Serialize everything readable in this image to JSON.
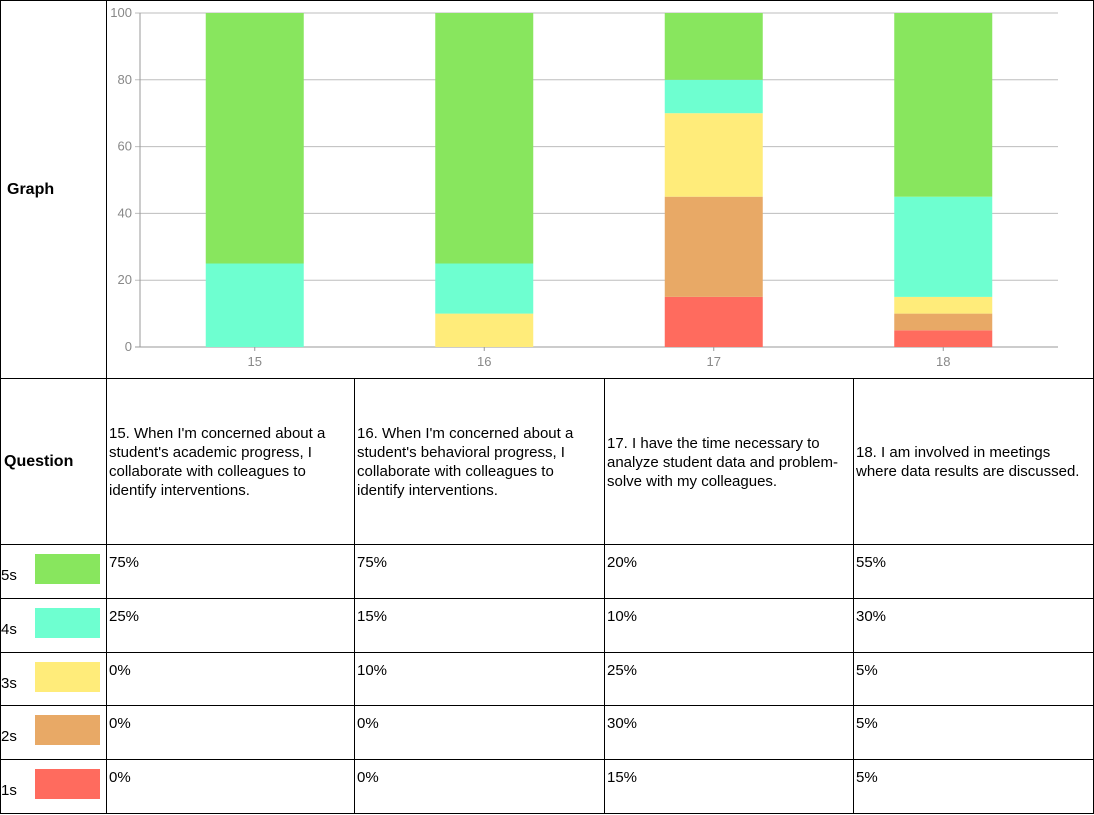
{
  "row_labels": {
    "graph": "Graph",
    "question": "Question"
  },
  "colors": {
    "5s": "#88e65e",
    "4s": "#6effd0",
    "3s": "#ffec7a",
    "2s": "#e8a966",
    "1s": "#ff6b5e"
  },
  "levels": [
    {
      "key": "5s",
      "label": "5s"
    },
    {
      "key": "4s",
      "label": "4s"
    },
    {
      "key": "3s",
      "label": "3s"
    },
    {
      "key": "2s",
      "label": "2s"
    },
    {
      "key": "1s",
      "label": "1s"
    }
  ],
  "questions": [
    {
      "text": "15. When I'm concerned about a student's academic progress, I collaborate with colleagues to identify interventions.",
      "pcts": [
        "75%",
        "25%",
        "0%",
        "0%",
        "0%"
      ]
    },
    {
      "text": "16. When I'm concerned about a student's behavioral progress, I collaborate with colleagues to identify interventions.",
      "pcts": [
        "75%",
        "15%",
        "10%",
        "0%",
        "0%"
      ]
    },
    {
      "text": "17. I have the time necessary to analyze student data and problem-solve with my colleagues.",
      "pcts": [
        "20%",
        "10%",
        "25%",
        "30%",
        "15%"
      ]
    },
    {
      "text": "18. I am involved in meetings where data results are discussed.",
      "pcts": [
        "55%",
        "30%",
        "5%",
        "5%",
        "5%"
      ]
    }
  ],
  "chart_data": {
    "type": "bar",
    "stacked": true,
    "categories": [
      "15",
      "16",
      "17",
      "18"
    ],
    "series": [
      {
        "name": "1s",
        "color": "#ff6b5e",
        "values": [
          0,
          0,
          15,
          5
        ]
      },
      {
        "name": "2s",
        "color": "#e8a966",
        "values": [
          0,
          0,
          30,
          5
        ]
      },
      {
        "name": "3s",
        "color": "#ffec7a",
        "values": [
          0,
          10,
          25,
          5
        ]
      },
      {
        "name": "4s",
        "color": "#6effd0",
        "values": [
          25,
          15,
          10,
          30
        ]
      },
      {
        "name": "5s",
        "color": "#88e65e",
        "values": [
          75,
          75,
          20,
          55
        ]
      }
    ],
    "ylim": [
      0,
      100
    ],
    "yticks": [
      0,
      20,
      40,
      60,
      80,
      100
    ],
    "grid": true
  }
}
